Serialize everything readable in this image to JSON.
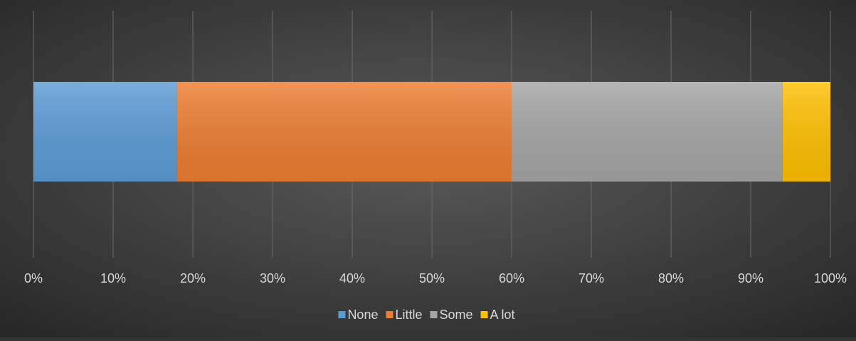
{
  "chart_data": {
    "type": "stacked-bar-horizontal",
    "series": [
      {
        "name": "None",
        "color": "#5b9bd5",
        "values": [
          18
        ]
      },
      {
        "name": "Little",
        "color": "#ed7d31",
        "values": [
          42
        ]
      },
      {
        "name": "Some",
        "color": "#a5a5a5",
        "values": [
          34
        ]
      },
      {
        "name": "A lot",
        "color": "#ffc000",
        "values": [
          6
        ]
      }
    ],
    "xlim": [
      0,
      100
    ],
    "xticks": [
      {
        "value": 0,
        "label": "0%"
      },
      {
        "value": 10,
        "label": "10%"
      },
      {
        "value": 20,
        "label": "20%"
      },
      {
        "value": 30,
        "label": "30%"
      },
      {
        "value": 40,
        "label": "40%"
      },
      {
        "value": 50,
        "label": "50%"
      },
      {
        "value": 60,
        "label": "60%"
      },
      {
        "value": 70,
        "label": "70%"
      },
      {
        "value": 80,
        "label": "80%"
      },
      {
        "value": 90,
        "label": "90%"
      },
      {
        "value": 100,
        "label": "100%"
      }
    ],
    "grid": true,
    "legend": "bottom"
  }
}
